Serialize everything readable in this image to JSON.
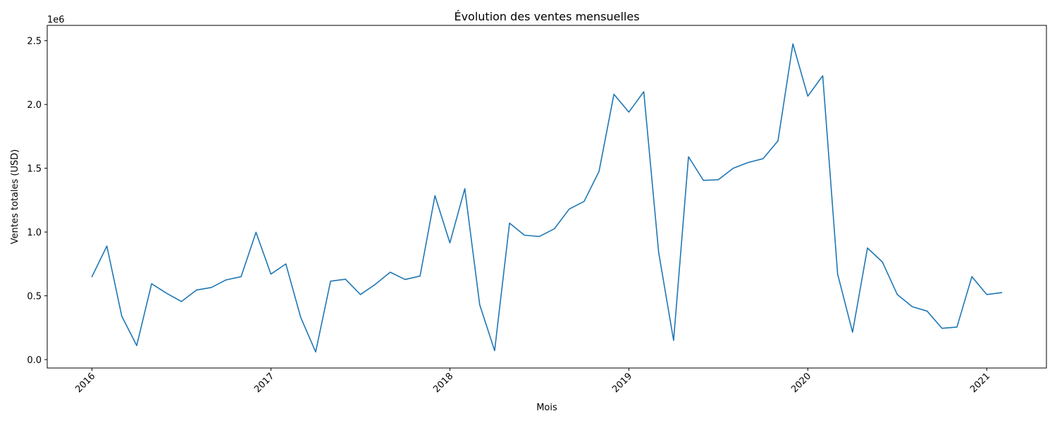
{
  "chart_data": {
    "type": "line",
    "title": "Évolution des ventes mensuelles",
    "xlabel": "Mois",
    "ylabel": "Ventes totales (USD)",
    "y_offset_label": "1e6",
    "line_color": "#1f77b4",
    "grid": false,
    "x_ticks": [
      {
        "value": "2016-01",
        "label": "2016"
      },
      {
        "value": "2017-01",
        "label": "2017"
      },
      {
        "value": "2018-01",
        "label": "2018"
      },
      {
        "value": "2019-01",
        "label": "2019"
      },
      {
        "value": "2020-01",
        "label": "2020"
      },
      {
        "value": "2021-01",
        "label": "2021"
      }
    ],
    "y_ticks": [
      {
        "value": 0,
        "label": "0.0"
      },
      {
        "value": 0.5,
        "label": "0.5"
      },
      {
        "value": 1.0,
        "label": "1.0"
      },
      {
        "value": 1.5,
        "label": "1.5"
      },
      {
        "value": 2.0,
        "label": "2.0"
      },
      {
        "value": 2.5,
        "label": "2.5"
      }
    ],
    "xlim": [
      "2015-10",
      "2021-05"
    ],
    "ylim": [
      -0.066,
      2.62
    ],
    "x": [
      "2016-01",
      "2016-02",
      "2016-03",
      "2016-04",
      "2016-05",
      "2016-06",
      "2016-07",
      "2016-08",
      "2016-09",
      "2016-10",
      "2016-11",
      "2016-12",
      "2017-01",
      "2017-02",
      "2017-03",
      "2017-04",
      "2017-05",
      "2017-06",
      "2017-07",
      "2017-08",
      "2017-09",
      "2017-10",
      "2017-11",
      "2017-12",
      "2018-01",
      "2018-02",
      "2018-03",
      "2018-04",
      "2018-05",
      "2018-06",
      "2018-07",
      "2018-08",
      "2018-09",
      "2018-10",
      "2018-11",
      "2018-12",
      "2019-01",
      "2019-02",
      "2019-03",
      "2019-04",
      "2019-05",
      "2019-06",
      "2019-07",
      "2019-08",
      "2019-09",
      "2019-10",
      "2019-11",
      "2019-12",
      "2020-01",
      "2020-02",
      "2020-03",
      "2020-04",
      "2020-05",
      "2020-06",
      "2020-07",
      "2020-08",
      "2020-09",
      "2020-10",
      "2020-11",
      "2020-12",
      "2021-01",
      "2021-02"
    ],
    "series": [
      {
        "values": [
          0.65,
          0.89,
          0.34,
          0.11,
          0.595,
          0.52,
          0.455,
          0.545,
          0.565,
          0.625,
          0.65,
          0.998,
          0.67,
          0.75,
          0.33,
          0.06,
          0.615,
          0.63,
          0.51,
          0.59,
          0.685,
          0.628,
          0.655,
          1.285,
          0.915,
          1.34,
          0.43,
          0.07,
          1.07,
          0.975,
          0.965,
          1.025,
          1.18,
          1.24,
          1.475,
          2.08,
          1.94,
          2.1,
          0.84,
          0.15,
          1.59,
          1.405,
          1.41,
          1.5,
          1.545,
          1.575,
          1.715,
          2.475,
          2.065,
          2.225,
          0.67,
          0.215,
          0.875,
          0.765,
          0.51,
          0.415,
          0.38,
          0.245,
          0.255,
          0.65,
          0.51,
          0.525
        ]
      }
    ]
  }
}
